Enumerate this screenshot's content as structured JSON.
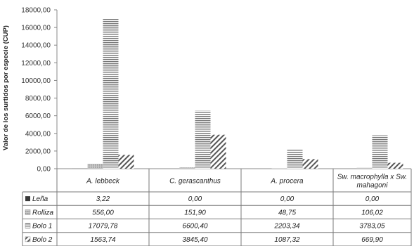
{
  "chart_data": {
    "type": "bar",
    "ylabel": "Valor de los surtidos por especie (CUP)",
    "ylim": [
      0,
      18000
    ],
    "yticks": [
      "0,00",
      "2000,00",
      "4000,00",
      "6000,00",
      "8000,00",
      "10000,00",
      "12000,00",
      "14000,00",
      "16000,00",
      "18000,00"
    ],
    "categories": [
      [
        "A. lebbeck"
      ],
      [
        "C. gerascanthus"
      ],
      [
        "A. procera"
      ],
      [
        "Sw. macrophylla x Sw.",
        "mahagoni"
      ]
    ],
    "series": [
      {
        "name": "Leña",
        "values": [
          3.22,
          0.0,
          0.0,
          0.0
        ],
        "labels": [
          "3,22",
          "0,00",
          "0,00",
          "0,00"
        ],
        "pattern": "solid"
      },
      {
        "name": "Rolliza",
        "values": [
          556.0,
          151.9,
          48.75,
          106.02
        ],
        "labels": [
          "556,00",
          "151,90",
          "48,75",
          "106,02"
        ],
        "pattern": "dots"
      },
      {
        "name": "Bolo 1",
        "values": [
          17079.78,
          6600.4,
          2203.34,
          3783.05
        ],
        "labels": [
          "17079,78",
          "6600,40",
          "2203,34",
          "3783,05"
        ],
        "pattern": "hlines"
      },
      {
        "name": "Bolo 2",
        "values": [
          1563.74,
          3845.4,
          1087.32,
          669.9
        ],
        "labels": [
          "1563,74",
          "3845,40",
          "1087,32",
          "669,90"
        ],
        "pattern": "diag"
      }
    ],
    "grid": false,
    "legend": "data-table-left"
  }
}
